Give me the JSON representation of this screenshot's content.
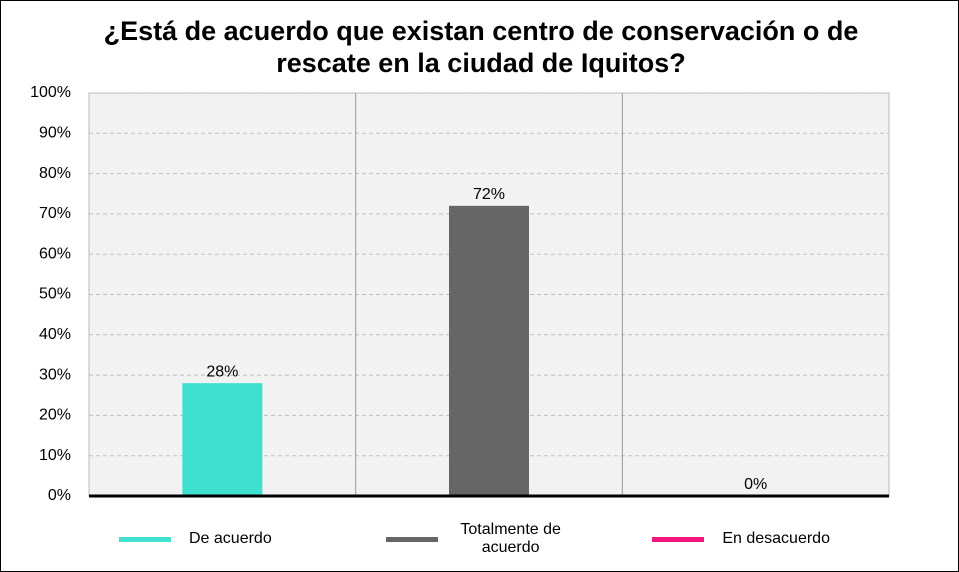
{
  "chart_data": {
    "type": "bar",
    "title": "¿Está de acuerdo que existan centro de conservación o de rescate en la ciudad de Iquitos?",
    "series": [
      {
        "name": "De acuerdo",
        "color": "#40e0d0",
        "values": [
          28
        ],
        "value_labels": [
          "28%"
        ]
      },
      {
        "name": "Totalmente de acuerdo",
        "color": "#666666",
        "values": [
          72
        ],
        "value_labels": [
          "72%"
        ]
      },
      {
        "name": "En desacuerdo",
        "color": "#f0157f",
        "values": [
          0
        ],
        "value_labels": [
          "0%"
        ]
      }
    ],
    "ylim": [
      0,
      100
    ],
    "yticks": [
      {
        "value": 0,
        "label": "0%"
      },
      {
        "value": 10,
        "label": "10%"
      },
      {
        "value": 20,
        "label": "20%"
      },
      {
        "value": 30,
        "label": "30%"
      },
      {
        "value": 40,
        "label": "40%"
      },
      {
        "value": 50,
        "label": "50%"
      },
      {
        "value": 60,
        "label": "60%"
      },
      {
        "value": 70,
        "label": "70%"
      },
      {
        "value": 80,
        "label": "80%"
      },
      {
        "value": 90,
        "label": "90%"
      },
      {
        "value": 100,
        "label": "100%"
      }
    ],
    "grid": true,
    "legend": "bottom"
  }
}
